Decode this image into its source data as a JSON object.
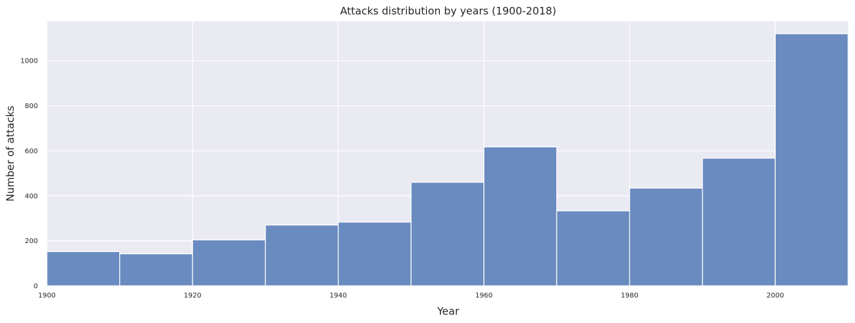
{
  "chart_data": {
    "type": "bar",
    "title": "Attacks distribution by years (1900-2018)",
    "xlabel": "Year",
    "ylabel": "Number of attacks",
    "xlim": [
      1900,
      2010
    ],
    "ylim": [
      0,
      1175
    ],
    "xticks": [
      "1900",
      "1920",
      "1940",
      "1960",
      "1980",
      "2000"
    ],
    "yticks": [
      "0",
      "200",
      "400",
      "600",
      "800",
      "1000"
    ],
    "bins": [
      {
        "start": 1900,
        "end": 1910,
        "value": 152
      },
      {
        "start": 1910,
        "end": 1920,
        "value": 142
      },
      {
        "start": 1920,
        "end": 1930,
        "value": 204
      },
      {
        "start": 1930,
        "end": 1940,
        "value": 270
      },
      {
        "start": 1940,
        "end": 1950,
        "value": 283
      },
      {
        "start": 1950,
        "end": 1960,
        "value": 460
      },
      {
        "start": 1960,
        "end": 1970,
        "value": 617
      },
      {
        "start": 1970,
        "end": 1980,
        "value": 333
      },
      {
        "start": 1980,
        "end": 1990,
        "value": 434
      },
      {
        "start": 1990,
        "end": 2000,
        "value": 567
      },
      {
        "start": 2000,
        "end": 2010,
        "value": 1120
      }
    ],
    "grid": true,
    "colors": {
      "bar": "#6a8bc0",
      "bar_edge": "#ffffff",
      "background": "#eaeaf2",
      "grid": "#ffffff"
    }
  }
}
